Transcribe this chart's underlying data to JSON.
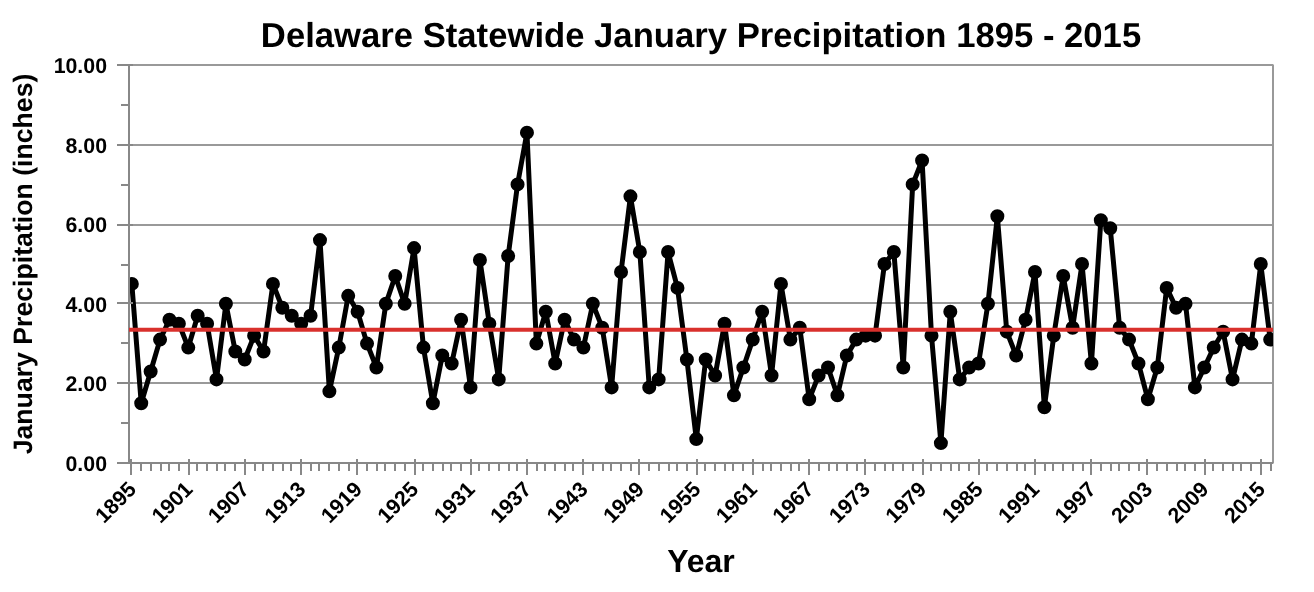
{
  "chart_data": {
    "type": "line",
    "title": "Delaware Statewide January Precipitation 1895 - 2015",
    "xlabel": "Year",
    "ylabel": "January Precipitation (inches)",
    "x": [
      1895,
      1896,
      1897,
      1898,
      1899,
      1900,
      1901,
      1902,
      1903,
      1904,
      1905,
      1906,
      1907,
      1908,
      1909,
      1910,
      1911,
      1912,
      1913,
      1914,
      1915,
      1916,
      1917,
      1918,
      1919,
      1920,
      1921,
      1922,
      1923,
      1924,
      1925,
      1926,
      1927,
      1928,
      1929,
      1930,
      1931,
      1932,
      1933,
      1934,
      1935,
      1936,
      1937,
      1938,
      1939,
      1940,
      1941,
      1942,
      1943,
      1944,
      1945,
      1946,
      1947,
      1948,
      1949,
      1950,
      1951,
      1952,
      1953,
      1954,
      1955,
      1956,
      1957,
      1958,
      1959,
      1960,
      1961,
      1962,
      1963,
      1964,
      1965,
      1966,
      1967,
      1968,
      1969,
      1970,
      1971,
      1972,
      1973,
      1974,
      1975,
      1976,
      1977,
      1978,
      1979,
      1980,
      1981,
      1982,
      1983,
      1984,
      1985,
      1986,
      1987,
      1988,
      1989,
      1990,
      1991,
      1992,
      1993,
      1994,
      1995,
      1996,
      1997,
      1998,
      1999,
      2000,
      2001,
      2002,
      2003,
      2004,
      2005,
      2006,
      2007,
      2008,
      2009,
      2010,
      2011,
      2012,
      2013,
      2014,
      2015,
      2016
    ],
    "series": [
      {
        "color": "#000000",
        "values": [
          4.5,
          1.5,
          2.3,
          3.1,
          3.6,
          3.5,
          2.9,
          3.7,
          3.5,
          2.1,
          4.0,
          2.8,
          2.6,
          3.2,
          2.8,
          4.5,
          3.9,
          3.7,
          3.5,
          3.7,
          5.6,
          1.8,
          2.9,
          4.2,
          3.8,
          3.0,
          2.4,
          4.0,
          4.7,
          4.0,
          5.4,
          2.9,
          1.5,
          2.7,
          2.5,
          3.6,
          1.9,
          5.1,
          3.5,
          2.1,
          5.2,
          7.0,
          8.3,
          3.0,
          3.8,
          2.5,
          3.6,
          3.1,
          2.9,
          4.0,
          3.4,
          1.9,
          4.8,
          6.7,
          5.3,
          1.9,
          2.1,
          5.3,
          4.4,
          2.6,
          0.6,
          2.6,
          2.2,
          3.5,
          1.7,
          2.4,
          3.1,
          3.8,
          2.2,
          4.5,
          3.1,
          3.4,
          1.6,
          2.2,
          2.4,
          1.7,
          2.7,
          3.1,
          3.2,
          3.2,
          5.0,
          5.3,
          2.4,
          7.0,
          7.6,
          3.2,
          0.5,
          3.8,
          2.1,
          2.4,
          2.5,
          4.0,
          6.2,
          3.3,
          2.7,
          3.6,
          4.8,
          1.4,
          3.2,
          4.7,
          3.4,
          5.0,
          2.5,
          6.1,
          5.9,
          3.4,
          3.1,
          2.5,
          1.6,
          2.4,
          4.4,
          3.9,
          4.0,
          1.9,
          2.4,
          2.9,
          3.3,
          2.1,
          3.1,
          3.0,
          5.0,
          3.1
        ]
      }
    ],
    "xlim": [
      1894.7,
      2016.3
    ],
    "xticks": [
      1895,
      1901,
      1907,
      1913,
      1919,
      1925,
      1931,
      1937,
      1943,
      1949,
      1955,
      1961,
      1967,
      1973,
      1979,
      1985,
      1991,
      1997,
      2003,
      2009,
      2015
    ],
    "ylim": [
      0,
      10
    ],
    "yticks": [
      {
        "value": 0,
        "label": "0.00"
      },
      {
        "value": 2,
        "label": "2.00"
      },
      {
        "value": 4,
        "label": "4.00"
      },
      {
        "value": 6,
        "label": "6.00"
      },
      {
        "value": 8,
        "label": "8.00"
      },
      {
        "value": 10,
        "label": "10.00"
      }
    ],
    "ref_lines": [
      {
        "axis": "y",
        "value": 3.35,
        "color": "#d9302c"
      }
    ],
    "grid": "y",
    "marker": "circle",
    "line_style": "solid"
  }
}
